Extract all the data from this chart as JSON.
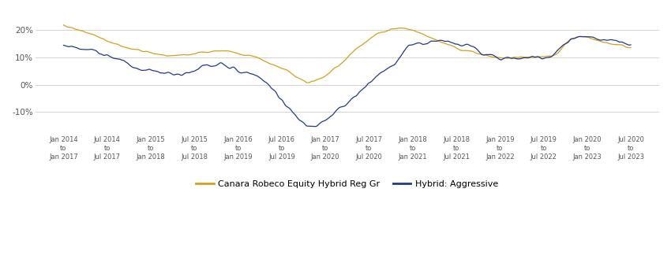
{
  "ylim": [
    -0.175,
    0.265
  ],
  "yticks": [
    -0.1,
    0.0,
    0.1,
    0.2
  ],
  "ytick_labels": [
    "-10%",
    "0%",
    "10%",
    "20%"
  ],
  "xtick_labels": [
    "Jan 2014\nto\nJan 2017",
    "Jul 2014\nto\nJul 2017",
    "Jan 2015\nto\nJan 2018",
    "Jul 2015\nto\nJul 2018",
    "Jan 2016\nto\nJan 2019",
    "Jul 2016\nto\nJul 2019",
    "Jan 2017\nto\nJan 2020",
    "Jul 2017\nto\nJul 2020",
    "Jan 2018\nto\nJan 2021",
    "Jul 2018\nto\nJul 2021",
    "Jan 2019\nto\nJan 2022",
    "Jul 2019\nto\nJul 2022",
    "Jan 2020\nto\nJan 2023",
    "Jul 2020\nto\nJul 2023"
  ],
  "legend_labels": [
    "Canara Robeco Equity Hybrid Reg Gr",
    "Hybrid: Aggressive"
  ],
  "canara_color": "#D4A017",
  "hybrid_color": "#1F3A8A",
  "background_color": "#FFFFFF",
  "grid_color": "#CCCCCC",
  "noise_seed_canara": 42,
  "noise_seed_hybrid": 99,
  "canara_base": [
    0.205,
    0.2,
    0.198,
    0.192,
    0.188,
    0.183,
    0.178,
    0.173,
    0.168,
    0.163,
    0.158,
    0.152,
    0.146,
    0.141,
    0.138,
    0.135,
    0.132,
    0.129,
    0.127,
    0.125,
    0.123,
    0.12,
    0.117,
    0.115,
    0.113,
    0.11,
    0.108,
    0.106,
    0.104,
    0.102,
    0.101,
    0.1,
    0.1,
    0.101,
    0.102,
    0.104,
    0.106,
    0.108,
    0.111,
    0.114,
    0.117,
    0.118,
    0.12,
    0.121,
    0.122,
    0.12,
    0.118,
    0.116,
    0.113,
    0.11,
    0.107,
    0.104,
    0.1,
    0.096,
    0.091,
    0.086,
    0.08,
    0.074,
    0.068,
    0.062,
    0.056,
    0.05,
    0.043,
    0.036,
    0.028,
    0.02,
    0.013,
    0.006,
    0.001,
    0.002,
    0.006,
    0.012,
    0.018,
    0.025,
    0.033,
    0.042,
    0.052,
    0.062,
    0.073,
    0.084,
    0.096,
    0.108,
    0.12,
    0.132,
    0.143,
    0.153,
    0.162,
    0.17,
    0.177,
    0.183,
    0.188,
    0.193,
    0.197,
    0.2,
    0.202,
    0.203,
    0.202,
    0.2,
    0.197,
    0.193,
    0.189,
    0.184,
    0.179,
    0.174,
    0.169,
    0.164,
    0.159,
    0.154,
    0.149,
    0.144,
    0.14,
    0.136,
    0.133,
    0.13,
    0.128,
    0.126,
    0.124,
    0.122,
    0.12,
    0.119,
    0.118,
    0.117,
    0.116,
    0.115,
    0.114,
    0.113,
    0.112,
    0.111,
    0.11,
    0.109,
    0.108,
    0.108,
    0.108,
    0.109,
    0.11,
    0.112,
    0.115,
    0.118,
    0.125,
    0.135,
    0.148,
    0.16,
    0.17,
    0.178,
    0.184,
    0.188,
    0.19,
    0.19,
    0.188,
    0.185,
    0.181,
    0.177,
    0.173,
    0.169,
    0.165,
    0.162,
    0.159,
    0.156,
    0.154,
    0.152
  ],
  "hybrid_base": [
    0.155,
    0.152,
    0.148,
    0.143,
    0.138,
    0.132,
    0.127,
    0.122,
    0.117,
    0.112,
    0.107,
    0.102,
    0.097,
    0.093,
    0.089,
    0.085,
    0.081,
    0.077,
    0.073,
    0.069,
    0.066,
    0.063,
    0.06,
    0.057,
    0.054,
    0.051,
    0.049,
    0.047,
    0.045,
    0.044,
    0.043,
    0.043,
    0.044,
    0.045,
    0.047,
    0.05,
    0.053,
    0.056,
    0.059,
    0.062,
    0.065,
    0.066,
    0.067,
    0.067,
    0.067,
    0.065,
    0.062,
    0.059,
    0.055,
    0.05,
    0.045,
    0.04,
    0.034,
    0.028,
    0.021,
    0.014,
    0.007,
    0.0,
    -0.008,
    -0.016,
    -0.026,
    -0.037,
    -0.049,
    -0.062,
    -0.076,
    -0.09,
    -0.104,
    -0.115,
    -0.123,
    -0.128,
    -0.13,
    -0.128,
    -0.124,
    -0.118,
    -0.112,
    -0.105,
    -0.098,
    -0.09,
    -0.082,
    -0.074,
    -0.065,
    -0.056,
    -0.047,
    -0.037,
    -0.027,
    -0.017,
    -0.007,
    0.003,
    0.014,
    0.025,
    0.037,
    0.05,
    0.063,
    0.077,
    0.091,
    0.104,
    0.116,
    0.126,
    0.134,
    0.141,
    0.147,
    0.151,
    0.154,
    0.156,
    0.157,
    0.157,
    0.156,
    0.154,
    0.151,
    0.148,
    0.144,
    0.14,
    0.136,
    0.132,
    0.128,
    0.124,
    0.12,
    0.116,
    0.112,
    0.108,
    0.104,
    0.1,
    0.096,
    0.093,
    0.09,
    0.088,
    0.086,
    0.085,
    0.085,
    0.086,
    0.087,
    0.089,
    0.091,
    0.094,
    0.097,
    0.101,
    0.105,
    0.11,
    0.12,
    0.133,
    0.148,
    0.16,
    0.17,
    0.178,
    0.183,
    0.187,
    0.188,
    0.188,
    0.186,
    0.183,
    0.179,
    0.175,
    0.17,
    0.166,
    0.162,
    0.159,
    0.156,
    0.153,
    0.151,
    0.149
  ]
}
